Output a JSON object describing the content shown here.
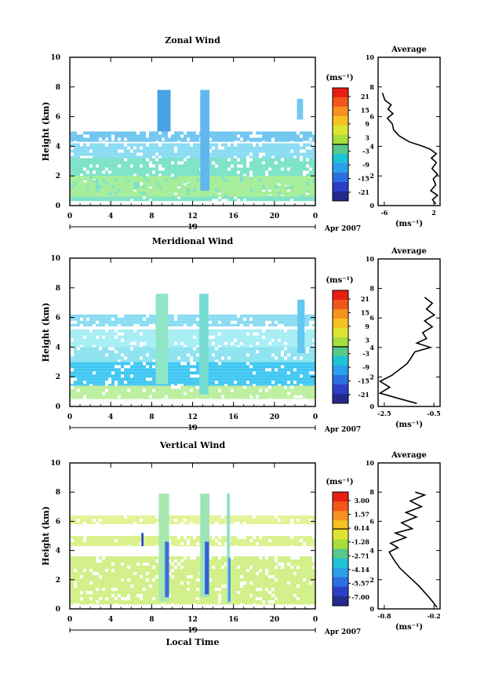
{
  "figure": {
    "xlabel": "Local Time",
    "date_label": "Apr 2007",
    "day_label": "19"
  },
  "chart_data": [
    {
      "type": "heatmap",
      "title": "Zonal Wind",
      "ylabel": "Height (km)",
      "xlim": [
        0,
        24
      ],
      "ylim": [
        0,
        10
      ],
      "x_ticks": [
        "0",
        "4",
        "8",
        "12",
        "16",
        "20",
        "0"
      ],
      "y_ticks": [
        "0",
        "2",
        "4",
        "6",
        "8",
        "10"
      ],
      "colorbar": {
        "unit": "(ms⁻¹)",
        "ticks": [
          "21",
          "15",
          "9",
          "3",
          "-3",
          "-9",
          "-15",
          "-21"
        ],
        "range": [
          -24,
          24
        ]
      },
      "layers": [
        {
          "y0": 0.3,
          "y1": 3.2,
          "color": "#7ee3c8"
        },
        {
          "y0": 0.6,
          "y1": 2.0,
          "color": "#a8ee9a"
        },
        {
          "y0": 3.2,
          "y1": 4.2,
          "color": "#8adcf2"
        },
        {
          "y0": 4.3,
          "y1": 5.0,
          "color": "#74c8f0"
        }
      ],
      "streaks": [
        {
          "x": 9.2,
          "y0": 5.0,
          "y1": 7.8,
          "w": 1.3,
          "color": "#4aa2e6"
        },
        {
          "x": 13.2,
          "y0": 1.0,
          "y1": 7.8,
          "w": 0.9,
          "color": "#62b6ee"
        },
        {
          "x": 22.5,
          "y0": 5.8,
          "y1": 7.2,
          "w": 0.6,
          "color": "#74c8f0"
        }
      ],
      "inset": {
        "title": "Average",
        "xlabel": "(ms⁻¹)",
        "x_ticks": [
          "-6",
          "2"
        ],
        "xlim": [
          -7,
          3
        ],
        "ylim": [
          0,
          10
        ],
        "y_ticks": [
          "0",
          "2",
          "4",
          "6",
          "8",
          "10"
        ],
        "profile": [
          [
            2.3,
            0.1
          ],
          [
            1.8,
            0.4
          ],
          [
            2.6,
            0.7
          ],
          [
            1.5,
            1.0
          ],
          [
            2.3,
            1.4
          ],
          [
            1.9,
            1.8
          ],
          [
            2.6,
            2.1
          ],
          [
            1.7,
            2.5
          ],
          [
            2.4,
            2.9
          ],
          [
            1.6,
            3.2
          ],
          [
            2.4,
            3.5
          ],
          [
            1.4,
            3.8
          ],
          [
            0.2,
            4.0
          ],
          [
            -2.0,
            4.3
          ],
          [
            -3.6,
            4.7
          ],
          [
            -4.5,
            5.1
          ],
          [
            -4.7,
            5.5
          ],
          [
            -5.5,
            5.9
          ],
          [
            -4.6,
            6.2
          ],
          [
            -5.4,
            6.5
          ],
          [
            -4.9,
            6.8
          ],
          [
            -5.9,
            7.1
          ],
          [
            -6.3,
            7.6
          ]
        ]
      }
    },
    {
      "type": "heatmap",
      "title": "Meridional Wind",
      "ylabel": "Height (km)",
      "xlim": [
        0,
        24
      ],
      "ylim": [
        0,
        10
      ],
      "x_ticks": [
        "0",
        "4",
        "8",
        "12",
        "16",
        "20",
        "0"
      ],
      "y_ticks": [
        "0",
        "2",
        "4",
        "6",
        "8",
        "10"
      ],
      "colorbar": {
        "unit": "(ms⁻¹)",
        "ticks": [
          "21",
          "15",
          "9",
          "3",
          "-3",
          "-9",
          "-15",
          "-21"
        ],
        "range": [
          -24,
          24
        ]
      },
      "layers": [
        {
          "y0": 0.5,
          "y1": 1.4,
          "color": "#bdefa0"
        },
        {
          "y0": 1.4,
          "y1": 3.0,
          "color": "#42c8f2"
        },
        {
          "y0": 3.0,
          "y1": 4.0,
          "color": "#8ee3f0"
        },
        {
          "y0": 4.0,
          "y1": 5.2,
          "color": "#a6eef4"
        },
        {
          "y0": 5.4,
          "y1": 6.2,
          "color": "#8adcf2"
        }
      ],
      "streaks": [
        {
          "x": 9.0,
          "y0": 1.5,
          "y1": 7.6,
          "w": 1.2,
          "color": "#8ee6c6"
        },
        {
          "x": 13.1,
          "y0": 0.8,
          "y1": 7.6,
          "w": 0.9,
          "color": "#76dcd2"
        },
        {
          "x": 22.6,
          "y0": 3.6,
          "y1": 7.2,
          "w": 0.7,
          "color": "#62c8f0"
        }
      ],
      "inset": {
        "title": "Average",
        "xlabel": "(ms⁻¹)",
        "x_ticks": [
          "-2.5",
          "-0.5"
        ],
        "xlim": [
          -3.1,
          0.1
        ],
        "ylim": [
          0,
          10
        ],
        "y_ticks": [
          "0",
          "2",
          "4",
          "6",
          "8",
          "10"
        ],
        "profile": [
          [
            -1.1,
            0.2
          ],
          [
            -2.2,
            0.6
          ],
          [
            -3.0,
            0.9
          ],
          [
            -2.5,
            1.3
          ],
          [
            -3.0,
            1.7
          ],
          [
            -2.4,
            2.1
          ],
          [
            -2.0,
            2.5
          ],
          [
            -1.6,
            2.9
          ],
          [
            -1.4,
            3.3
          ],
          [
            -1.2,
            3.7
          ],
          [
            -0.4,
            4.0
          ],
          [
            -1.1,
            4.3
          ],
          [
            -0.6,
            4.6
          ],
          [
            -0.8,
            5.0
          ],
          [
            -0.3,
            5.4
          ],
          [
            -0.7,
            5.8
          ],
          [
            -0.2,
            6.2
          ],
          [
            -0.6,
            6.6
          ],
          [
            -0.3,
            7.0
          ],
          [
            -0.7,
            7.4
          ]
        ]
      }
    },
    {
      "type": "heatmap",
      "title": "Vertical Wind",
      "ylabel": "Height (km)",
      "xlim": [
        0,
        24
      ],
      "ylim": [
        0,
        10
      ],
      "x_ticks": [
        "0",
        "4",
        "8",
        "12",
        "16",
        "20",
        "0"
      ],
      "y_ticks": [
        "0",
        "2",
        "4",
        "6",
        "8",
        "10"
      ],
      "colorbar": {
        "unit": "(ms⁻¹)",
        "ticks": [
          "3.00",
          "1.57",
          "0.14",
          "-1.28",
          "-2.71",
          "-4.14",
          "-5.57",
          "-7.00"
        ],
        "range": [
          -7.7,
          3.7
        ]
      },
      "layers": [
        {
          "y0": 0.3,
          "y1": 3.6,
          "color": "#d2f08a"
        },
        {
          "y0": 4.3,
          "y1": 5.0,
          "color": "#dcf290"
        },
        {
          "y0": 5.8,
          "y1": 6.4,
          "color": "#e2f498"
        }
      ],
      "streaks": [
        {
          "x": 9.2,
          "y0": 0.5,
          "y1": 7.9,
          "w": 1.0,
          "color": "#a8e8b0"
        },
        {
          "x": 13.2,
          "y0": 0.8,
          "y1": 7.9,
          "w": 0.9,
          "color": "#9ee4b8"
        },
        {
          "x": 15.5,
          "y0": 0.4,
          "y1": 7.9,
          "w": 0.3,
          "color": "#8ee0d0"
        },
        {
          "x": 9.5,
          "y0": 0.8,
          "y1": 4.6,
          "w": 0.4,
          "color": "#3a6ee0"
        },
        {
          "x": 13.4,
          "y0": 1.0,
          "y1": 4.6,
          "w": 0.4,
          "color": "#3060d8"
        },
        {
          "x": 15.6,
          "y0": 0.5,
          "y1": 3.5,
          "w": 0.2,
          "color": "#3c8ae8"
        },
        {
          "x": 7.1,
          "y0": 4.3,
          "y1": 5.2,
          "w": 0.2,
          "color": "#2244cc"
        }
      ],
      "inset": {
        "title": "Average",
        "xlabel": "(ms⁻¹)",
        "x_ticks": [
          "-0.8",
          "-0.2"
        ],
        "xlim": [
          -1.0,
          0.0
        ],
        "ylim": [
          0,
          10
        ],
        "y_ticks": [
          "0",
          "2",
          "4",
          "6",
          "8",
          "10"
        ],
        "profile": [
          [
            -0.05,
            0.1
          ],
          [
            -0.12,
            0.5
          ],
          [
            -0.22,
            1.0
          ],
          [
            -0.35,
            1.6
          ],
          [
            -0.5,
            2.2
          ],
          [
            -0.65,
            2.8
          ],
          [
            -0.75,
            3.4
          ],
          [
            -0.82,
            3.9
          ],
          [
            -0.68,
            4.2
          ],
          [
            -0.8,
            4.5
          ],
          [
            -0.55,
            4.9
          ],
          [
            -0.72,
            5.2
          ],
          [
            -0.45,
            5.5
          ],
          [
            -0.62,
            5.9
          ],
          [
            -0.38,
            6.3
          ],
          [
            -0.55,
            6.6
          ],
          [
            -0.3,
            7.0
          ],
          [
            -0.48,
            7.4
          ],
          [
            -0.25,
            7.8
          ],
          [
            -0.4,
            8.0
          ]
        ]
      }
    }
  ]
}
